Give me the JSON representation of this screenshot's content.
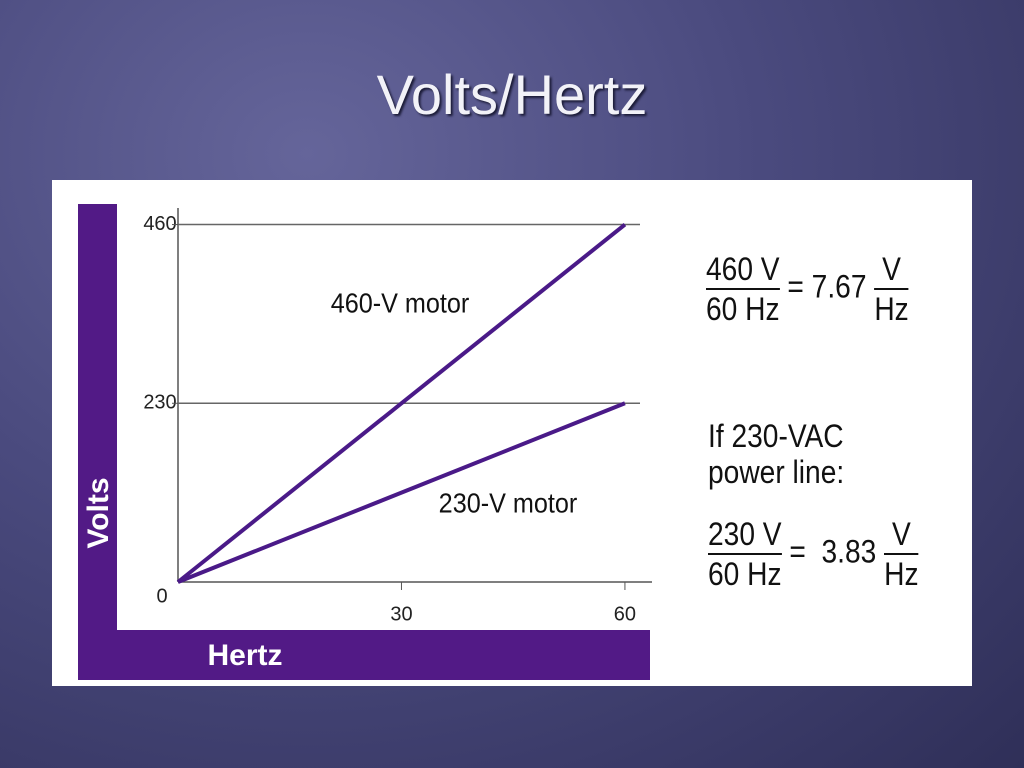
{
  "slide": {
    "title": "Volts/Hertz"
  },
  "chart_data": {
    "type": "line",
    "x": [
      0,
      60
    ],
    "series": [
      {
        "name": "460-V motor",
        "color": "#4a1a88",
        "values": [
          0,
          460
        ]
      },
      {
        "name": "230-V motor",
        "color": "#4a1a88",
        "values": [
          0,
          230
        ]
      }
    ],
    "xlim": [
      0,
      63.5
    ],
    "ylim": [
      0,
      480
    ],
    "xticks": [
      30,
      60
    ],
    "yticks": [
      0,
      230,
      460
    ],
    "xlabel": "Hertz",
    "ylabel": "Volts",
    "grid": true
  },
  "equations": [
    {
      "numerator": "460 V",
      "denominator": "60 Hz",
      "equals": "=",
      "result": "7.67",
      "unit_numerator": "V",
      "unit_denominator": "Hz"
    },
    {
      "numerator": "230 V",
      "denominator": "60 Hz",
      "equals": "=",
      "result": "3.83",
      "unit_numerator": "V",
      "unit_denominator": "Hz"
    }
  ],
  "condition": "If 230-VAC power line:"
}
